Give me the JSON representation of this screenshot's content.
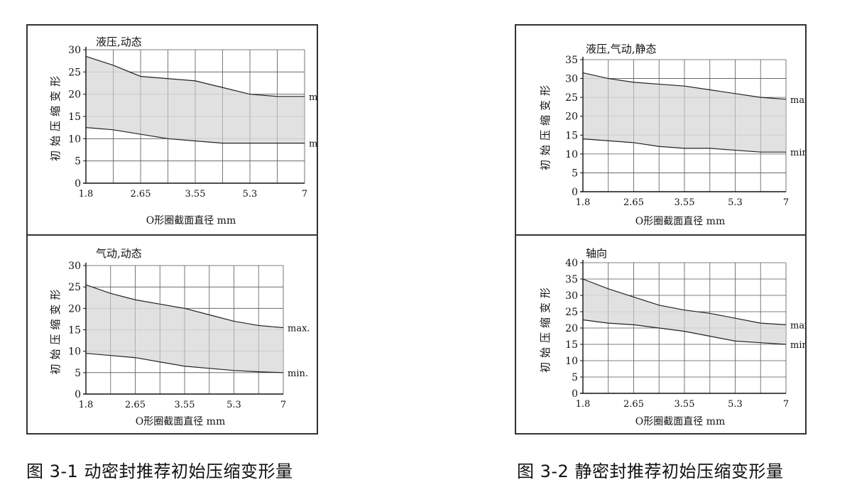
{
  "captions": [
    "图 3-1 动密封推荐初始压缩变形量",
    "图 3-2 静密封推荐初始压缩变形量"
  ],
  "chart_data": [
    {
      "type": "area",
      "title": "液压,动态",
      "xlabel": "O形圈截面直径  mm",
      "ylabel": "初始压缩变形",
      "categories": [
        "1.8",
        "2.65",
        "3.55",
        "5.3",
        "7"
      ],
      "x_ticks": [
        0,
        1,
        2,
        3,
        4,
        5,
        6,
        7,
        8
      ],
      "yticks": [
        0,
        5,
        10,
        15,
        20,
        25,
        30
      ],
      "ylim": [
        0,
        30
      ],
      "grid": true,
      "series": [
        {
          "name": "max.",
          "x": [
            0,
            1,
            2,
            3,
            4,
            5,
            6,
            7,
            8
          ],
          "values": [
            28.5,
            26.5,
            24,
            23.5,
            23,
            21.5,
            20,
            19.5,
            19.5
          ]
        },
        {
          "name": "min.",
          "x": [
            0,
            1,
            2,
            3,
            4,
            5,
            6,
            7,
            8
          ],
          "values": [
            12.5,
            12,
            11,
            10,
            9.5,
            9,
            9,
            9,
            9
          ]
        }
      ]
    },
    {
      "type": "area",
      "title": "气动,动态",
      "xlabel": "O形圈截面直径  mm",
      "ylabel": "初始压缩变形",
      "categories": [
        "1.8",
        "2.65",
        "3.55",
        "5.3",
        "7"
      ],
      "x_ticks": [
        0,
        1,
        2,
        3,
        4,
        5,
        6,
        7,
        8
      ],
      "yticks": [
        0,
        5,
        10,
        15,
        20,
        25,
        30
      ],
      "ylim": [
        0,
        30
      ],
      "grid": true,
      "series": [
        {
          "name": "max.",
          "x": [
            0,
            1,
            2,
            3,
            4,
            5,
            6,
            7,
            8
          ],
          "values": [
            25.5,
            23.5,
            22,
            21,
            20,
            18.5,
            17,
            16,
            15.5
          ]
        },
        {
          "name": "min.",
          "x": [
            0,
            1,
            2,
            3,
            4,
            5,
            6,
            7,
            8
          ],
          "values": [
            9.5,
            9,
            8.5,
            7.5,
            6.5,
            6,
            5.5,
            5.2,
            5
          ]
        }
      ]
    },
    {
      "type": "area",
      "title": "液压,气动,静态",
      "xlabel": "O形圈截面直径  mm",
      "ylabel": "初始压缩变形",
      "categories": [
        "1.8",
        "2.65",
        "3.55",
        "5.3",
        "7"
      ],
      "x_ticks": [
        0,
        1,
        2,
        3,
        4,
        5,
        6,
        7,
        8
      ],
      "yticks": [
        0,
        5,
        10,
        15,
        20,
        25,
        30,
        35
      ],
      "ylim": [
        0,
        35
      ],
      "grid": true,
      "series": [
        {
          "name": "max.",
          "x": [
            0,
            1,
            2,
            3,
            4,
            5,
            6,
            7,
            8
          ],
          "values": [
            31.5,
            30,
            29,
            28.5,
            28,
            27,
            26,
            25,
            24.5
          ]
        },
        {
          "name": "min.",
          "x": [
            0,
            1,
            2,
            3,
            4,
            5,
            6,
            7,
            8
          ],
          "values": [
            14,
            13.5,
            13,
            12,
            11.5,
            11.5,
            11,
            10.5,
            10.5
          ]
        }
      ]
    },
    {
      "type": "area",
      "title": "轴向",
      "xlabel": "O形圈截面直径  mm",
      "ylabel": "初始压缩变形",
      "categories": [
        "1.8",
        "2.65",
        "3.55",
        "5.3",
        "7"
      ],
      "x_ticks": [
        0,
        1,
        2,
        3,
        4,
        5,
        6,
        7,
        8
      ],
      "yticks": [
        0,
        5,
        10,
        15,
        20,
        25,
        30,
        35,
        40
      ],
      "ylim": [
        0,
        40
      ],
      "grid": true,
      "series": [
        {
          "name": "max.",
          "x": [
            0,
            1,
            2,
            3,
            4,
            5,
            6,
            7,
            8
          ],
          "values": [
            35,
            32,
            29.5,
            27,
            25.5,
            24.5,
            23,
            21.5,
            21
          ]
        },
        {
          "name": "min.",
          "x": [
            0,
            1,
            2,
            3,
            4,
            5,
            6,
            7,
            8
          ],
          "values": [
            22.5,
            21.5,
            21,
            20,
            19,
            17.5,
            16,
            15.5,
            15
          ]
        }
      ]
    }
  ]
}
